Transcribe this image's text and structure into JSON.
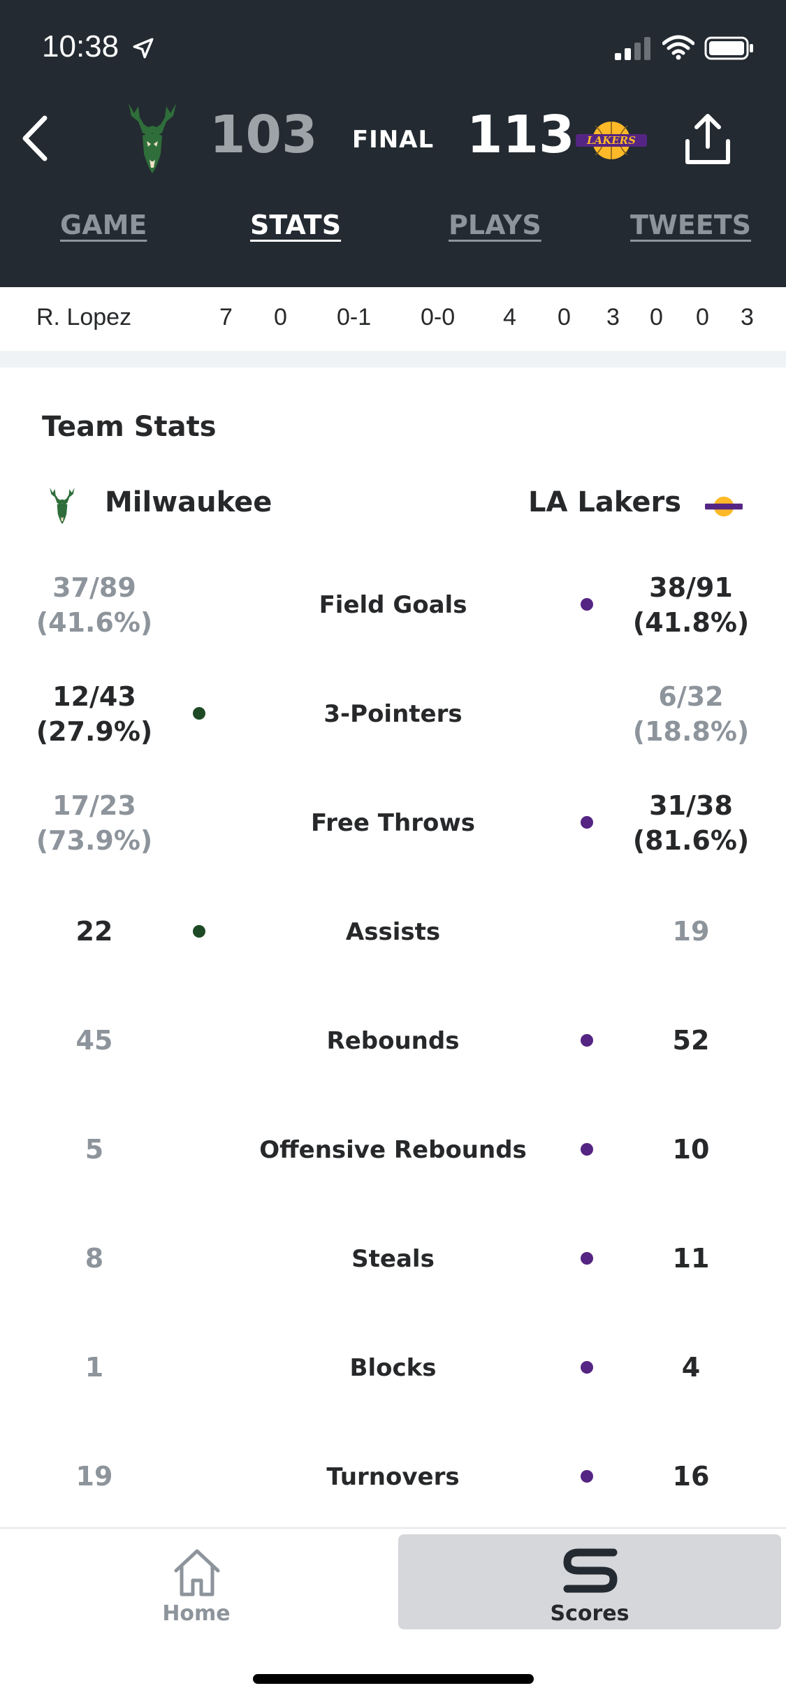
{
  "status_bar": {
    "time": "10:38"
  },
  "header": {
    "home_score": "103",
    "status": "FINAL",
    "away_score": "113",
    "away_logo_text": "LAKERS"
  },
  "tabs": [
    {
      "label": "GAME",
      "active": false
    },
    {
      "label": "STATS",
      "active": true
    },
    {
      "label": "PLAYS",
      "active": false
    },
    {
      "label": "TWEETS",
      "active": false
    }
  ],
  "player_row": {
    "name": "R. Lopez",
    "values": [
      "7",
      "0",
      "0-1",
      "0-0",
      "4",
      "0",
      "3",
      "0",
      "0",
      "3"
    ]
  },
  "team_stats": {
    "title": "Team Stats",
    "home_team": "Milwaukee",
    "away_team": "LA Lakers",
    "rows": [
      {
        "label": "Field Goals",
        "home": "37/89\n(41.6%)",
        "away": "38/91\n(41.8%)",
        "leader": "away"
      },
      {
        "label": "3-Pointers",
        "home": "12/43\n(27.9%)",
        "away": "6/32\n(18.8%)",
        "leader": "home"
      },
      {
        "label": "Free Throws",
        "home": "17/23\n(73.9%)",
        "away": "31/38\n(81.6%)",
        "leader": "away"
      },
      {
        "label": "Assists",
        "home": "22",
        "away": "19",
        "leader": "home"
      },
      {
        "label": "Rebounds",
        "home": "45",
        "away": "52",
        "leader": "away"
      },
      {
        "label": "Offensive Rebounds",
        "home": "5",
        "away": "10",
        "leader": "away"
      },
      {
        "label": "Steals",
        "home": "8",
        "away": "11",
        "leader": "away"
      },
      {
        "label": "Blocks",
        "home": "1",
        "away": "4",
        "leader": "away"
      },
      {
        "label": "Turnovers",
        "home": "19",
        "away": "16",
        "leader": "away"
      }
    ]
  },
  "bottom_nav": {
    "home_label": "Home",
    "scores_label": "Scores"
  },
  "colors": {
    "header_bg": "#232a31",
    "bucks_green": "#1d4a25",
    "lakers_purple": "#552583",
    "lakers_gold": "#fdb927"
  }
}
